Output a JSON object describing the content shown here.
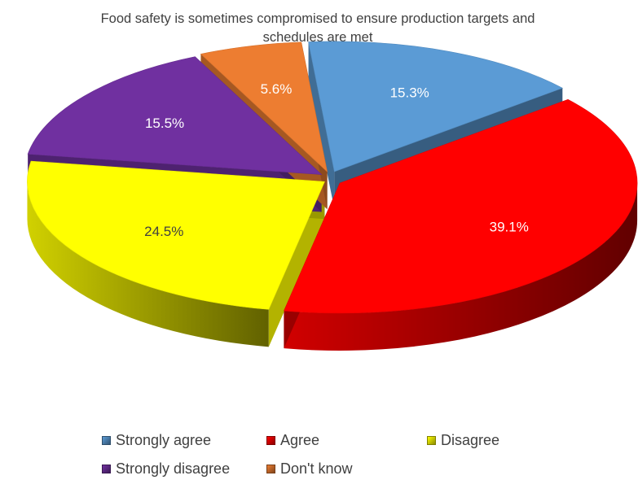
{
  "chart_data": {
    "type": "pie",
    "title": "Food safety is sometimes compromised to ensure production targets and schedules are met",
    "title_lines": [
      "Food safety is sometimes compromised to ensure production targets and",
      "schedules are met"
    ],
    "slices": [
      {
        "name": "Strongly agree",
        "value": 15.3,
        "label": "15.3%",
        "color": "#5B9BD5",
        "label_color": "#ffffff"
      },
      {
        "name": "Agree",
        "value": 39.1,
        "label": "39.1%",
        "color": "#FF0000",
        "label_color": "#ffffff"
      },
      {
        "name": "Disagree",
        "value": 24.5,
        "label": "24.5%",
        "color": "#FFFF00",
        "label_color": "#404040"
      },
      {
        "name": "Strongly disagree",
        "value": 15.5,
        "label": "15.5%",
        "color": "#7030A0",
        "label_color": "#ffffff"
      },
      {
        "name": "Don't know",
        "value": 5.6,
        "label": "5.6%",
        "color": "#ED7D31",
        "label_color": "#ffffff"
      }
    ],
    "style": "3d-exploded-pie",
    "legend_position": "bottom"
  }
}
